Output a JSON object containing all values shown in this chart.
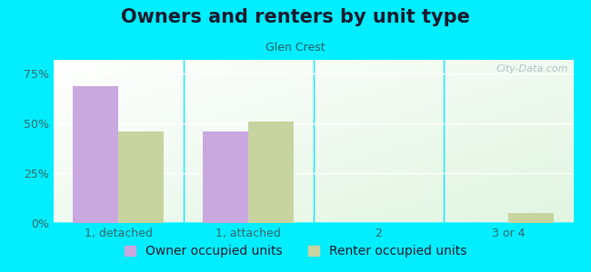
{
  "title": "Owners and renters by unit type",
  "subtitle": "Glen Crest",
  "categories": [
    "1, detached",
    "1, attached",
    "2",
    "3 or 4"
  ],
  "owner_values": [
    69,
    46,
    0,
    0
  ],
  "renter_values": [
    46,
    51,
    0,
    5
  ],
  "owner_color": "#c9a8e0",
  "renter_color": "#c8d4a0",
  "yticks": [
    0,
    25,
    50,
    75
  ],
  "ylim": [
    0,
    82
  ],
  "bar_width": 0.35,
  "title_fontsize": 15,
  "subtitle_fontsize": 9,
  "legend_fontsize": 10,
  "tick_fontsize": 9,
  "outer_bg": "#00eeff",
  "title_color": "#1a1a2e",
  "subtitle_color": "#2a6060",
  "tick_color": "#336666",
  "watermark_text": "City-Data.com",
  "watermark_color": "#a0b8c0"
}
